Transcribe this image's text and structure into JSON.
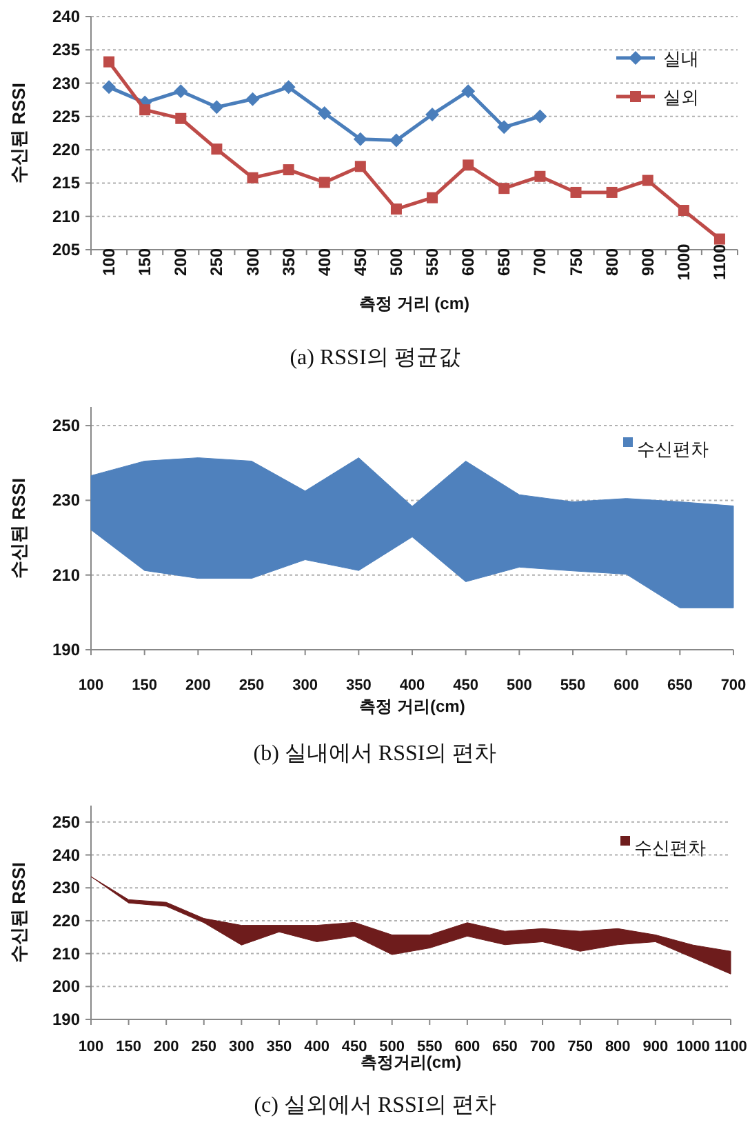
{
  "chart_data": [
    {
      "type": "line",
      "title": "(a) RSSI의 평균값",
      "xlabel": "측정 거리  (cm)",
      "ylabel": "수신된 RSSI",
      "categories": [
        "100",
        "150",
        "200",
        "250",
        "300",
        "350",
        "400",
        "450",
        "500",
        "550",
        "600",
        "650",
        "700",
        "750",
        "800",
        "900",
        "1000",
        "1100"
      ],
      "ylim": [
        205,
        240
      ],
      "yticks": [
        205,
        210,
        215,
        220,
        225,
        230,
        235,
        240
      ],
      "grid": "y",
      "legend": "top right",
      "series": [
        {
          "name": "실내",
          "color": "#4a7ebb",
          "marker": "diamond",
          "values": [
            229.4,
            227.1,
            228.8,
            226.4,
            227.6,
            229.4,
            225.5,
            221.6,
            221.4,
            225.3,
            228.8,
            223.4,
            225.0,
            null,
            null,
            null,
            null,
            null
          ]
        },
        {
          "name": "실외",
          "color": "#be4b48",
          "marker": "square",
          "values": [
            233.2,
            226.0,
            224.7,
            220.1,
            215.8,
            217.0,
            215.1,
            217.5,
            211.1,
            212.8,
            217.7,
            214.2,
            216.0,
            213.6,
            213.6,
            215.4,
            210.9,
            206.6
          ]
        }
      ]
    },
    {
      "type": "area",
      "title": "(b) 실내에서 RSSI의 편차",
      "xlabel": "측정 거리(cm)",
      "ylabel": "수신된 RSSI",
      "categories": [
        "100",
        "150",
        "200",
        "250",
        "300",
        "350",
        "400",
        "450",
        "500",
        "550",
        "600",
        "650",
        "700"
      ],
      "ylim": [
        190,
        255
      ],
      "yticks": [
        190,
        210,
        230,
        250
      ],
      "grid": "y",
      "legend": "top right",
      "series": [
        {
          "name": "수신편차",
          "color": "#4f81bd",
          "values": [
            null,
            null,
            null,
            null,
            null,
            null,
            null,
            null,
            null,
            null,
            null,
            null,
            null
          ],
          "upper": [
            236.6,
            240.5,
            241.4,
            240.5,
            232.5,
            241.4,
            228.4,
            240.5,
            231.5,
            229.6,
            230.5,
            229.6,
            228.5
          ],
          "lower": [
            222.1,
            211.2,
            209.1,
            209.1,
            214.1,
            211.2,
            220.2,
            208.2,
            212.1,
            211.1,
            210.2,
            201.2,
            201.2
          ]
        }
      ]
    },
    {
      "type": "area",
      "title": "(c) 실외에서 RSSI의 편차",
      "xlabel": "측정거리(cm)",
      "ylabel": "수신된 RSSI",
      "categories": [
        "100",
        "150",
        "200",
        "250",
        "300",
        "350",
        "400",
        "450",
        "500",
        "550",
        "600",
        "650",
        "700",
        "750",
        "800",
        "900",
        "1000",
        "1100"
      ],
      "ylim": [
        190,
        255
      ],
      "yticks": [
        190,
        200,
        210,
        220,
        230,
        240,
        250
      ],
      "grid": "y",
      "legend": "top right",
      "series": [
        {
          "name": "수신편차",
          "color": "#6e1c1c",
          "values": [
            null,
            null,
            null,
            null,
            null,
            null,
            null,
            null,
            null,
            null,
            null,
            null,
            null,
            null,
            null,
            null,
            null,
            null
          ],
          "upper": [
            233.4,
            226.4,
            225.6,
            220.7,
            218.6,
            218.6,
            218.6,
            219.5,
            215.7,
            215.7,
            219.4,
            216.8,
            217.6,
            216.8,
            217.6,
            215.7,
            212.6,
            210.7
          ],
          "lower": [
            233.4,
            225.4,
            224.4,
            219.4,
            212.6,
            216.6,
            213.6,
            215.3,
            209.7,
            211.7,
            215.3,
            212.7,
            213.6,
            210.7,
            212.7,
            213.6,
            208.7,
            203.8
          ]
        }
      ]
    }
  ]
}
